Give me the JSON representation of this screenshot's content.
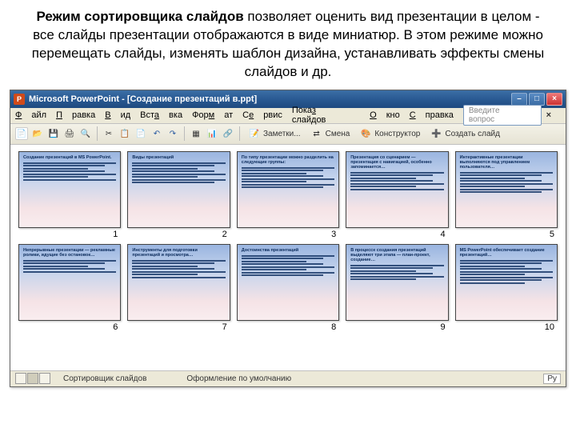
{
  "description": {
    "bold": "Режим сортировщика слайдов",
    "rest": " позволяет оценить вид презентации в целом -  все слайды презентации отображаются в виде миниатюр. В этом режиме можно перемещать слайды, изменять шаблон дизайна, устанавливать эффекты смены слайдов и др."
  },
  "window": {
    "app_name": "Microsoft PowerPoint",
    "doc_title": "[Создание презентаций в.ppt]",
    "colors": {
      "titlebar_start": "#3b6ea5",
      "titlebar_end": "#1e4a7f",
      "chrome": "#ece9d8",
      "close": "#c33"
    }
  },
  "menu": {
    "items": [
      "Файл",
      "Правка",
      "Вид",
      "Вставка",
      "Формат",
      "Сервис",
      "Показ слайдов",
      "Окно",
      "Справка"
    ],
    "help_placeholder": "Введите вопрос"
  },
  "toolbar": {
    "notes": "Заметки...",
    "transition": "Смена",
    "designer": "Конструктор",
    "new_slide": "Создать слайд"
  },
  "slides": [
    {
      "n": 1,
      "title": "Создание презентаций в MS PowerPoint.",
      "lines": 7
    },
    {
      "n": 2,
      "title": "Виды презентаций",
      "lines": 8
    },
    {
      "n": 3,
      "title": "По типу презентации можно разделить на следующие группы:",
      "lines": 8
    },
    {
      "n": 4,
      "title": "Презентация со сценарием — презентация с навигацией, особенно запоминается…",
      "lines": 7
    },
    {
      "n": 5,
      "title": "Интерактивные презентации выполняются под управлением пользователя…",
      "lines": 8
    },
    {
      "n": 6,
      "title": "Непрерывные презентации — рекламные ролики, идущие без остановок…",
      "lines": 5
    },
    {
      "n": 7,
      "title": "Инструменты для подготовки презентаций и просмотра…",
      "lines": 7
    },
    {
      "n": 8,
      "title": "Достоинства презентаций",
      "lines": 8
    },
    {
      "n": 9,
      "title": "В процессе создания презентаций выделяют три этапа — план-проект, создание…",
      "lines": 6
    },
    {
      "n": 10,
      "title": "MS PowerPoint обеспечивает создание презентаций…",
      "lines": 9
    }
  ],
  "slide_style": {
    "bg_top": "#9ab5e0",
    "bg_mid": "#c5d4ed",
    "bg_low": "#f5e3e6",
    "text_color": "#0a2a5a"
  },
  "status": {
    "mode": "Сортировщик слайдов",
    "template": "Оформление по умолчанию",
    "lang": "Ру"
  }
}
